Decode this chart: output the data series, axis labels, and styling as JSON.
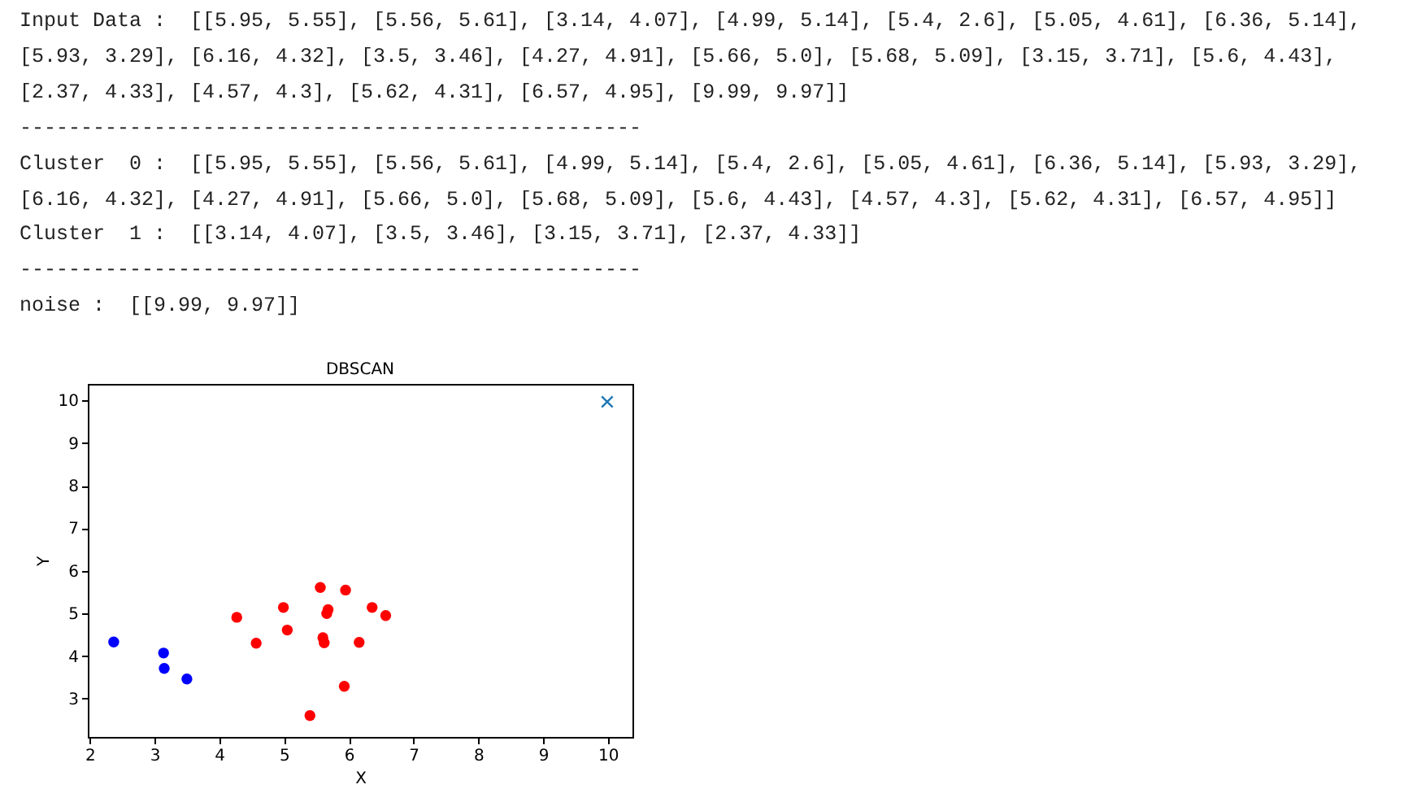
{
  "chart_data": {
    "type": "scatter",
    "title": "DBSCAN",
    "xlabel": "X",
    "ylabel": "Y",
    "annotations": [
      "Input Data :  [[5.95, 5.55], [5.56, 5.61], [3.14, 4.07], [4.99, 5.14], [5.4, 2.6], [5.05, 4.61], [6.36, 5.14],",
      "[5.93, 3.29], [6.16, 4.32], [3.5, 3.46], [4.27, 4.91], [5.66, 5.0], [5.68, 5.09], [3.15, 3.71], [5.6, 4.43],",
      "[2.37, 4.33], [4.57, 4.3], [5.62, 4.31], [6.57, 4.95], [9.99, 9.97]]",
      "---------------------------------------------------",
      "Cluster  0 :  [[5.95, 5.55], [5.56, 5.61], [4.99, 5.14], [5.4, 2.6], [5.05, 4.61], [6.36, 5.14], [5.93, 3.29],",
      "[6.16, 4.32], [4.27, 4.91], [5.66, 5.0], [5.68, 5.09], [5.6, 4.43], [4.57, 4.3], [5.62, 4.31], [6.57, 4.95]]",
      "Cluster  1 :  [[3.14, 4.07], [3.5, 3.46], [3.15, 3.71], [2.37, 4.33]]",
      "---------------------------------------------------",
      "noise :  [[9.99, 9.97]]"
    ],
    "series": [
      {
        "color": "#ff0000",
        "marker": "circle",
        "x": [
          5.95,
          5.56,
          4.99,
          5.4,
          5.05,
          6.36,
          5.93,
          6.16,
          4.27,
          5.66,
          5.68,
          5.6,
          4.57,
          5.62,
          6.57
        ],
        "values": [
          5.55,
          5.61,
          5.14,
          2.6,
          4.61,
          5.14,
          3.29,
          4.32,
          4.91,
          5.0,
          5.09,
          4.43,
          4.3,
          4.31,
          4.95
        ]
      },
      {
        "color": "#0000ff",
        "marker": "circle",
        "x": [
          3.14,
          3.5,
          3.15,
          2.37
        ],
        "values": [
          4.07,
          3.46,
          3.71,
          4.33
        ]
      },
      {
        "color": "#1f77b4",
        "marker": "cross",
        "x": [
          9.99
        ],
        "values": [
          9.97
        ]
      }
    ],
    "xlim": [
      1.97,
      10.38
    ],
    "xticks": [
      2,
      3,
      4,
      5,
      6,
      7,
      8,
      9,
      10
    ],
    "ylim": [
      2.1,
      10.39
    ],
    "yticks": [
      3,
      4,
      5,
      6,
      7,
      8,
      9,
      10
    ],
    "grid": false
  }
}
